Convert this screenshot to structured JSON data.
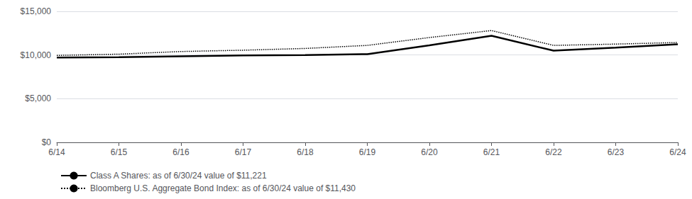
{
  "chart_data": {
    "type": "line",
    "categories": [
      "6/14",
      "6/15",
      "6/16",
      "6/17",
      "6/18",
      "6/19",
      "6/20",
      "6/21",
      "6/22",
      "6/23",
      "6/24"
    ],
    "series": [
      {
        "name": "Class A Shares: as of 6/30/24 value of $11,221",
        "color": "#000000",
        "line_style": "solid",
        "values": [
          9700,
          9750,
          9850,
          9950,
          10000,
          10100,
          11100,
          12200,
          10500,
          10850,
          11221
        ]
      },
      {
        "name": "Bloomberg U.S. Aggregate Bond Index: as of 6/30/24 value of $11,430",
        "color": "#000000",
        "line_style": "dotted",
        "values": [
          9950,
          10100,
          10400,
          10550,
          10750,
          11100,
          12000,
          12800,
          11100,
          11250,
          11430
        ]
      }
    ],
    "ylim": [
      0,
      15000
    ],
    "yticks": [
      {
        "value": 0,
        "label": "$0"
      },
      {
        "value": 5000,
        "label": "$5,000"
      },
      {
        "value": 10000,
        "label": "$10,000"
      },
      {
        "value": 15000,
        "label": "$15,000"
      }
    ],
    "grid": true,
    "legend": "lower left"
  }
}
